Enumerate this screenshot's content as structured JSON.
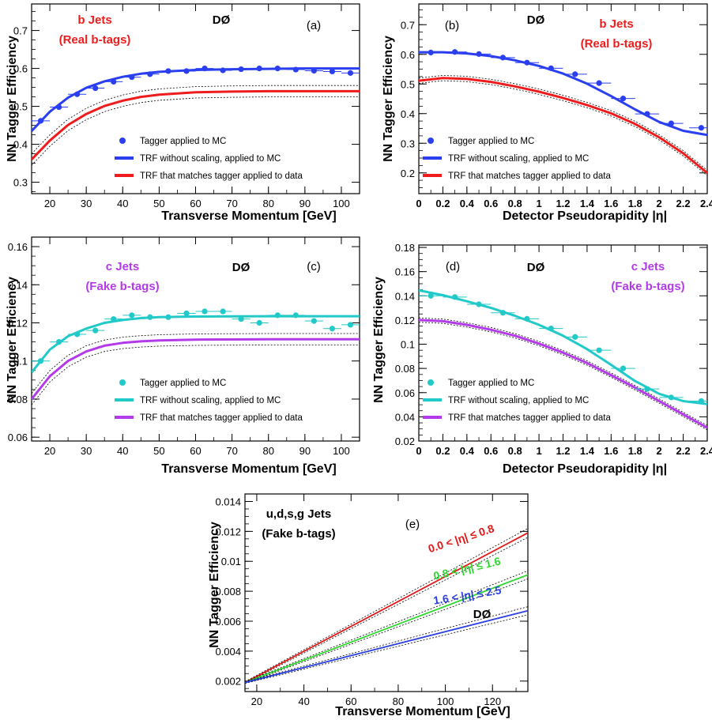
{
  "experiment": "DØ",
  "common": {
    "ylabel": "NN Tagger Efficiency",
    "xlabel_pt": "Transverse Momentum   [GeV]",
    "xlabel_eta": "Detector Pseudorapidity  |η|"
  },
  "colors": {
    "b": "#2a3ff0",
    "b_data": "#ee1c1c",
    "c": "#22c9c9",
    "c_data": "#b33ae8",
    "light1": "#e01818",
    "light2": "#30d630",
    "light3": "#2a3fe0",
    "band": "#000000"
  },
  "chart_data": [
    {
      "id": "a",
      "type": "scatter",
      "panel_label": "(a)",
      "title_line1": "b Jets",
      "title_line2": "(Real b-tags)",
      "xlabel": "Transverse Momentum   [GeV]",
      "ylabel": "NN Tagger Efficiency",
      "xlim": [
        15,
        105
      ],
      "ylim": [
        0.27,
        0.77
      ],
      "xticks": [
        20,
        30,
        40,
        50,
        60,
        70,
        80,
        90,
        100
      ],
      "yticks": [
        0.3,
        0.4,
        0.5,
        0.6,
        0.7
      ],
      "legend": [
        "Tagger applied to MC",
        "TRF without scaling, applied to MC",
        "TRF that matches tagger applied to data"
      ],
      "points": {
        "x": [
          17.5,
          22.5,
          27.5,
          32.5,
          37.5,
          42.5,
          47.5,
          52.5,
          57.5,
          62.5,
          67.5,
          72.5,
          77.5,
          82.5,
          87.5,
          92.5,
          97.5,
          102.5
        ],
        "y": [
          0.462,
          0.498,
          0.532,
          0.548,
          0.565,
          0.577,
          0.585,
          0.593,
          0.593,
          0.6,
          0.595,
          0.598,
          0.6,
          0.6,
          0.597,
          0.594,
          0.592,
          0.588
        ]
      },
      "curves": [
        {
          "x": [
            15,
            20,
            25,
            30,
            35,
            40,
            45,
            50,
            60,
            70,
            80,
            90,
            100,
            105
          ],
          "y": [
            0.435,
            0.486,
            0.523,
            0.549,
            0.566,
            0.578,
            0.586,
            0.591,
            0.596,
            0.598,
            0.599,
            0.6,
            0.6,
            0.6
          ]
        },
        {
          "x": [
            15,
            20,
            25,
            30,
            35,
            40,
            45,
            50,
            60,
            70,
            80,
            90,
            100,
            105
          ],
          "y": [
            0.36,
            0.41,
            0.451,
            0.48,
            0.501,
            0.515,
            0.525,
            0.531,
            0.537,
            0.539,
            0.54,
            0.54,
            0.54,
            0.54
          ]
        }
      ],
      "band_offset": 0.025
    },
    {
      "id": "b",
      "type": "scatter",
      "panel_label": "(b)",
      "title_line1": "b Jets",
      "title_line2": "(Real b-tags)",
      "xlabel": "Detector Pseudorapidity  |η|",
      "ylabel": "NN Tagger Efficiency",
      "xlim": [
        0,
        2.4
      ],
      "ylim": [
        0.13,
        0.77
      ],
      "xticks": [
        0,
        0.2,
        0.4,
        0.6,
        0.8,
        1,
        1.2,
        1.4,
        1.6,
        1.8,
        2,
        2.2,
        2.4
      ],
      "yticks": [
        0.2,
        0.3,
        0.4,
        0.5,
        0.6,
        0.7
      ],
      "legend": [
        "Tagger applied to MC",
        "TRF without scaling, applied to MC",
        "TRF that matches tagger applied to data"
      ],
      "points": {
        "x": [
          0.1,
          0.3,
          0.5,
          0.7,
          0.9,
          1.1,
          1.3,
          1.5,
          1.7,
          1.9,
          2.1,
          2.35
        ],
        "y": [
          0.606,
          0.608,
          0.601,
          0.589,
          0.572,
          0.553,
          0.533,
          0.503,
          0.451,
          0.399,
          0.367,
          0.352
        ]
      },
      "curves": [
        {
          "x": [
            0,
            0.2,
            0.4,
            0.6,
            0.8,
            1.0,
            1.2,
            1.4,
            1.6,
            1.8,
            2.0,
            2.2,
            2.4
          ],
          "y": [
            0.607,
            0.607,
            0.603,
            0.594,
            0.58,
            0.561,
            0.535,
            0.501,
            0.459,
            0.414,
            0.372,
            0.342,
            0.328
          ]
        },
        {
          "x": [
            0,
            0.2,
            0.4,
            0.6,
            0.8,
            1.0,
            1.2,
            1.4,
            1.6,
            1.8,
            2.0,
            2.2,
            2.4
          ],
          "y": [
            0.511,
            0.52,
            0.517,
            0.507,
            0.492,
            0.474,
            0.453,
            0.429,
            0.401,
            0.365,
            0.32,
            0.266,
            0.2
          ]
        }
      ],
      "band_offset": 0.015
    },
    {
      "id": "c",
      "type": "scatter",
      "panel_label": "(c)",
      "title_line1": "c Jets",
      "title_line2": "(Fake b-tags)",
      "xlabel": "Transverse Momentum   [GeV]",
      "ylabel": "NN Tagger Efficiency",
      "xlim": [
        15,
        105
      ],
      "ylim": [
        0.058,
        0.165
      ],
      "xticks": [
        20,
        30,
        40,
        50,
        60,
        70,
        80,
        90,
        100
      ],
      "yticks": [
        0.06,
        0.08,
        0.1,
        0.12,
        0.14,
        0.16
      ],
      "legend": [
        "Tagger applied to MC",
        "TRF without scaling, applied to MC",
        "TRF that matches tagger applied to data"
      ],
      "points": {
        "x": [
          17.5,
          22.5,
          27.5,
          32.5,
          37.5,
          42.5,
          47.5,
          52.5,
          57.5,
          62.5,
          67.5,
          72.5,
          77.5,
          82.5,
          87.5,
          92.5,
          97.5,
          102.5
        ],
        "y": [
          0.1,
          0.11,
          0.114,
          0.116,
          0.122,
          0.124,
          0.123,
          0.123,
          0.125,
          0.126,
          0.126,
          0.122,
          0.12,
          0.124,
          0.124,
          0.121,
          0.117,
          0.119
        ]
      },
      "curves": [
        {
          "x": [
            15,
            20,
            25,
            30,
            35,
            40,
            45,
            50,
            60,
            70,
            80,
            90,
            100,
            105
          ],
          "y": [
            0.094,
            0.106,
            0.113,
            0.117,
            0.12,
            0.1215,
            0.1225,
            0.123,
            0.1233,
            0.1234,
            0.1235,
            0.1235,
            0.1235,
            0.1235
          ]
        },
        {
          "x": [
            15,
            20,
            25,
            30,
            35,
            40,
            45,
            50,
            60,
            70,
            80,
            90,
            100,
            105
          ],
          "y": [
            0.08,
            0.092,
            0.1,
            0.105,
            0.108,
            0.1095,
            0.1103,
            0.1108,
            0.1112,
            0.1113,
            0.1114,
            0.1114,
            0.1114,
            0.1114
          ]
        }
      ],
      "band_offset": 0.005
    },
    {
      "id": "d",
      "type": "scatter",
      "panel_label": "(d)",
      "title_line1": "c Jets",
      "title_line2": "(Fake b-tags)",
      "xlabel": "Detector Pseudorapidity  |η|",
      "ylabel": "NN Tagger Efficiency",
      "xlim": [
        0,
        2.4
      ],
      "ylim": [
        0.02,
        0.182
      ],
      "xticks": [
        0,
        0.2,
        0.4,
        0.6,
        0.8,
        1,
        1.2,
        1.4,
        1.6,
        1.8,
        2,
        2.2,
        2.4
      ],
      "yticks": [
        0.02,
        0.04,
        0.06,
        0.08,
        0.1,
        0.12,
        0.14,
        0.16,
        0.18
      ],
      "legend": [
        "Tagger applied to MC",
        "TRF without scaling, applied to MC",
        "TRF that matches tagger applied to data"
      ],
      "points": {
        "x": [
          0.1,
          0.3,
          0.5,
          0.7,
          0.9,
          1.1,
          1.3,
          1.5,
          1.7,
          1.9,
          2.1,
          2.35
        ],
        "y": [
          0.14,
          0.139,
          0.133,
          0.126,
          0.121,
          0.113,
          0.106,
          0.095,
          0.08,
          0.063,
          0.056,
          0.053
        ]
      },
      "curves": [
        {
          "x": [
            0,
            0.2,
            0.4,
            0.6,
            0.8,
            1.0,
            1.2,
            1.4,
            1.6,
            1.8,
            2.0,
            2.2,
            2.4
          ],
          "y": [
            0.1445,
            0.1405,
            0.1355,
            0.13,
            0.1235,
            0.116,
            0.107,
            0.096,
            0.083,
            0.0695,
            0.059,
            0.053,
            0.0505
          ]
        },
        {
          "x": [
            0,
            0.2,
            0.4,
            0.6,
            0.8,
            1.0,
            1.2,
            1.4,
            1.6,
            1.8,
            2.0,
            2.2,
            2.4
          ],
          "y": [
            0.12,
            0.119,
            0.116,
            0.112,
            0.107,
            0.1005,
            0.093,
            0.0845,
            0.0745,
            0.064,
            0.053,
            0.042,
            0.031
          ]
        }
      ],
      "band_offset": 0.003
    },
    {
      "id": "e",
      "type": "line",
      "panel_label": "(e)",
      "title_line1": "u,d,s,g Jets",
      "title_line2": "(Fake b-tags)",
      "xlabel": "Transverse Momentum   [GeV]",
      "ylabel": "NN Tagger Efficiency",
      "xlim": [
        15,
        135
      ],
      "ylim": [
        0.0013,
        0.0145
      ],
      "xticks": [
        20,
        40,
        60,
        80,
        100,
        120
      ],
      "yticks": [
        0.002,
        0.004,
        0.006,
        0.008,
        0.01,
        0.012,
        0.014
      ],
      "series": [
        {
          "name": "0.0 < |η| ≤ 0.8",
          "x": [
            15,
            135
          ],
          "y": [
            0.0019,
            0.0119
          ]
        },
        {
          "name": "0.8 < |η| ≤ 1.6",
          "x": [
            15,
            135
          ],
          "y": [
            0.0019,
            0.0091
          ]
        },
        {
          "name": "1.6 < |η| ≤ 2.5",
          "x": [
            15,
            135
          ],
          "y": [
            0.0019,
            0.0067
          ]
        }
      ],
      "band_offset": 0.0003
    }
  ]
}
